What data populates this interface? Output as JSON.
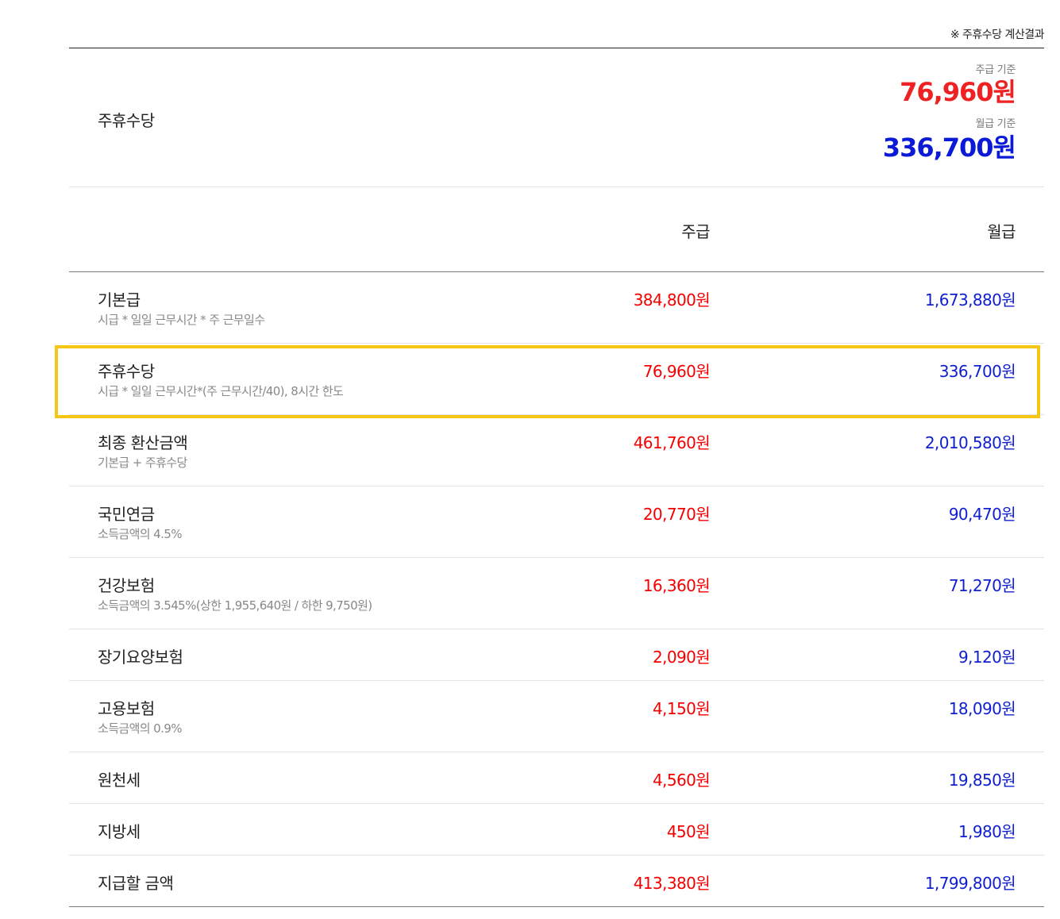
{
  "caption": "※ 주휴수당 계산결과",
  "summary": {
    "label": "주휴수당",
    "weekly_caption": "주급 기준",
    "weekly_amount": "76,960원",
    "monthly_caption": "월급 기준",
    "monthly_amount": "336,700원"
  },
  "table": {
    "headers": {
      "weekly": "주급",
      "monthly": "월급"
    },
    "rows": [
      {
        "label": "기본급",
        "desc": "시급 * 일일 근무시간 * 주 근무일수",
        "weekly": "384,800원",
        "monthly": "1,673,880원"
      },
      {
        "label": "주휴수당",
        "desc": "시급 * 일일 근무시간*(주 근무시간/40), 8시간 한도",
        "weekly": "76,960원",
        "monthly": "336,700원"
      },
      {
        "label": "최종 환산금액",
        "desc": "기본급 + 주휴수당",
        "weekly": "461,760원",
        "monthly": "2,010,580원"
      },
      {
        "label": "국민연금",
        "desc": "소득금액의 4.5%",
        "weekly": "20,770원",
        "monthly": "90,470원"
      },
      {
        "label": "건강보험",
        "desc": "소득금액의 3.545%(상한 1,955,640원 / 하한 9,750원)",
        "weekly": "16,360원",
        "monthly": "71,270원"
      },
      {
        "label": "장기요양보험",
        "desc": "",
        "weekly": "2,090원",
        "monthly": "9,120원"
      },
      {
        "label": "고용보험",
        "desc": "소득금액의 0.9%",
        "weekly": "4,150원",
        "monthly": "18,090원"
      },
      {
        "label": "원천세",
        "desc": "",
        "weekly": "4,560원",
        "monthly": "19,850원"
      },
      {
        "label": "지방세",
        "desc": "",
        "weekly": "450원",
        "monthly": "1,980원"
      },
      {
        "label": "지급할 금액",
        "desc": "",
        "weekly": "413,380원",
        "monthly": "1,799,800원"
      }
    ]
  },
  "colors": {
    "weekly": "#f50000",
    "monthly": "#1020d0",
    "highlight": "#f5c518"
  },
  "highlighted_row": "주휴수당"
}
